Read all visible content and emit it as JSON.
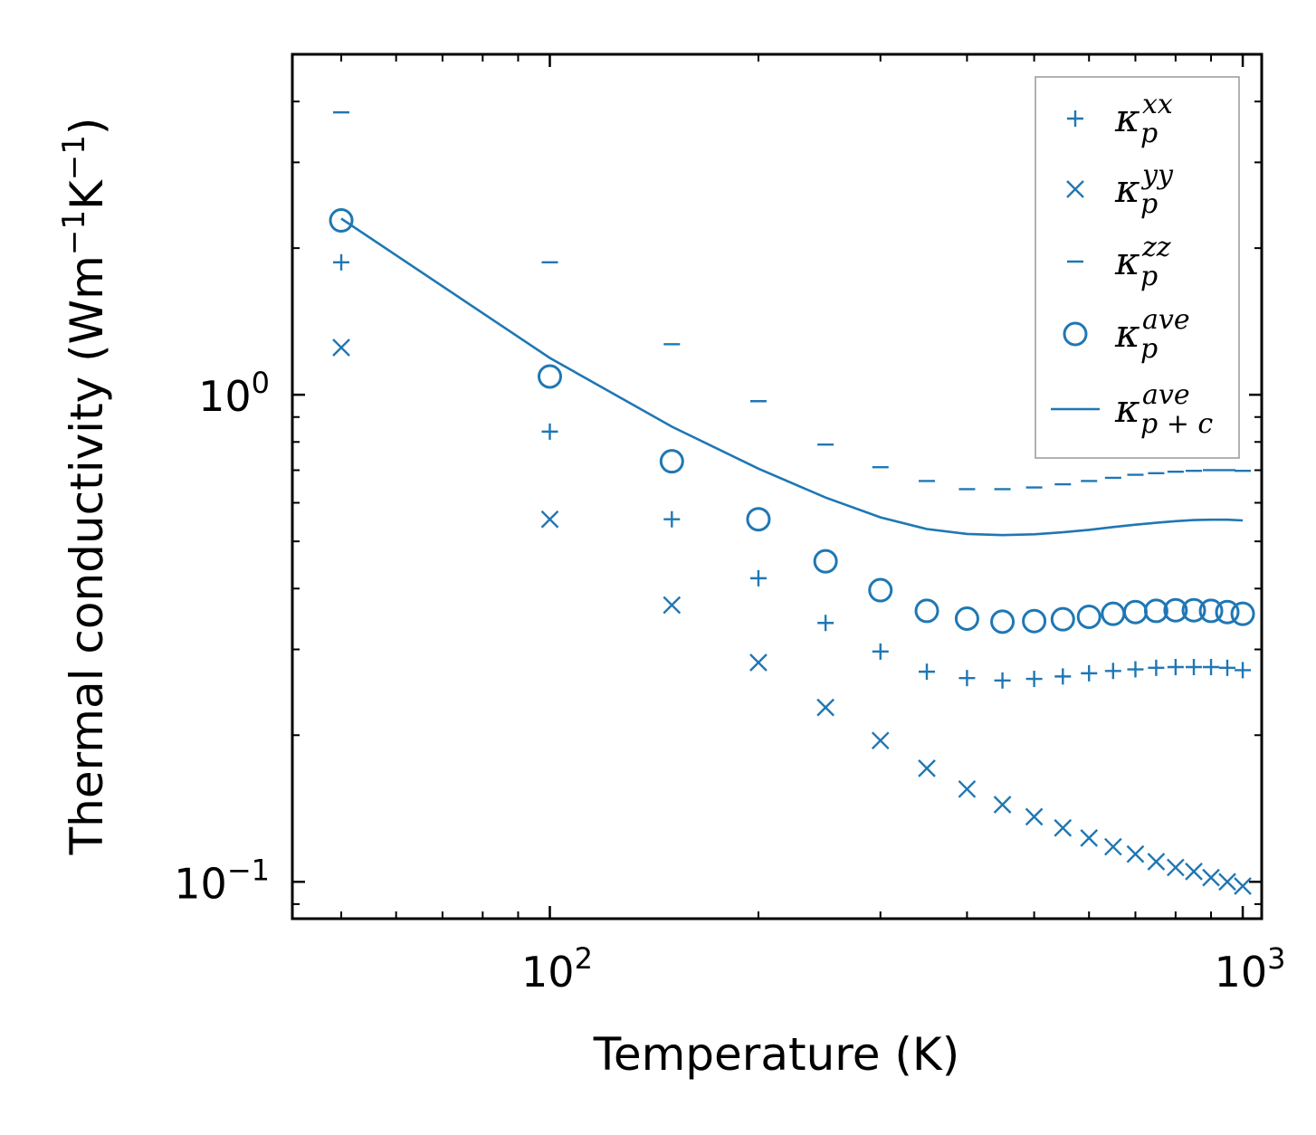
{
  "chart_data": {
    "type": "scatter",
    "title": "",
    "xlabel": "Temperature (K)",
    "ylabel": {
      "text": "Thermal conductivity (Wm",
      "sup1": "−1",
      "mid": "K",
      "sup2": "−1",
      "end": ")"
    },
    "xscale": "log",
    "yscale": "log",
    "xlim": [
      42.5,
      1065
    ],
    "ylim": [
      0.084,
      5.0
    ],
    "x_ticks": [
      {
        "value": 100,
        "base": "10",
        "exp": "2"
      },
      {
        "value": 1000,
        "base": "10",
        "exp": "3"
      }
    ],
    "y_ticks": [
      {
        "value": 1.0,
        "base": "10",
        "exp": "0"
      },
      {
        "value": 0.1,
        "base": "10",
        "exp": "−1"
      }
    ],
    "grid": false,
    "color": "#1f77b4",
    "legend_position": "upper right",
    "x": [
      50,
      100,
      150,
      200,
      250,
      300,
      350,
      400,
      450,
      500,
      550,
      600,
      650,
      700,
      750,
      800,
      850,
      900,
      950,
      1000
    ],
    "series": [
      {
        "name": "kappa_p^xx",
        "marker": "plus",
        "legend_base": "κ",
        "legend_sub": "p",
        "legend_sup": "xx",
        "x": [
          50,
          100,
          150,
          200,
          250,
          300,
          350,
          400,
          450,
          500,
          550,
          600,
          650,
          700,
          750,
          800,
          850,
          900,
          950,
          1000
        ],
        "values": [
          1.87,
          0.84,
          0.555,
          0.42,
          0.34,
          0.297,
          0.27,
          0.262,
          0.259,
          0.261,
          0.264,
          0.268,
          0.271,
          0.273,
          0.275,
          0.276,
          0.276,
          0.276,
          0.275,
          0.272
        ]
      },
      {
        "name": "kappa_p^yy",
        "marker": "x",
        "legend_base": "κ",
        "legend_sub": "p",
        "legend_sup": "yy",
        "x": [
          50,
          100,
          150,
          200,
          250,
          300,
          350,
          400,
          450,
          500,
          550,
          600,
          650,
          700,
          750,
          800,
          850,
          900,
          950,
          1000
        ],
        "values": [
          1.25,
          0.555,
          0.37,
          0.282,
          0.228,
          0.195,
          0.171,
          0.155,
          0.144,
          0.136,
          0.129,
          0.123,
          0.118,
          0.114,
          0.11,
          0.107,
          0.105,
          0.102,
          0.1,
          0.098
        ]
      },
      {
        "name": "kappa_p^zz",
        "marker": "hline",
        "legend_base": "κ",
        "legend_sub": "p",
        "legend_sup": "zz",
        "x": [
          50,
          100,
          150,
          200,
          250,
          300,
          350,
          400,
          450,
          500,
          550,
          600,
          650,
          700,
          750,
          800,
          850,
          900,
          950,
          1000
        ],
        "values": [
          3.8,
          1.87,
          1.27,
          0.97,
          0.79,
          0.71,
          0.665,
          0.64,
          0.64,
          0.645,
          0.655,
          0.665,
          0.675,
          0.685,
          0.69,
          0.695,
          0.698,
          0.7,
          0.7,
          0.698
        ]
      },
      {
        "name": "kappa_p^ave",
        "marker": "circle",
        "legend_base": "κ",
        "legend_sub": "p",
        "legend_sup": "ave",
        "x": [
          50,
          100,
          150,
          200,
          250,
          300,
          350,
          400,
          450,
          500,
          550,
          600,
          650,
          700,
          750,
          800,
          850,
          900,
          950,
          1000
        ],
        "values": [
          2.28,
          1.09,
          0.73,
          0.555,
          0.455,
          0.397,
          0.36,
          0.347,
          0.342,
          0.343,
          0.346,
          0.35,
          0.355,
          0.358,
          0.36,
          0.361,
          0.361,
          0.36,
          0.358,
          0.355
        ]
      },
      {
        "name": "kappa_p+c^ave",
        "marker": "line",
        "legend_base": "κ",
        "legend_sub": "p + c",
        "legend_sup": "ave",
        "x": [
          50,
          100,
          150,
          200,
          250,
          300,
          350,
          400,
          450,
          500,
          550,
          600,
          650,
          700,
          750,
          800,
          850,
          900,
          950,
          1000
        ],
        "values": [
          2.3,
          1.19,
          0.86,
          0.705,
          0.615,
          0.56,
          0.53,
          0.518,
          0.515,
          0.517,
          0.522,
          0.528,
          0.535,
          0.541,
          0.546,
          0.55,
          0.553,
          0.554,
          0.554,
          0.552
        ]
      }
    ]
  }
}
